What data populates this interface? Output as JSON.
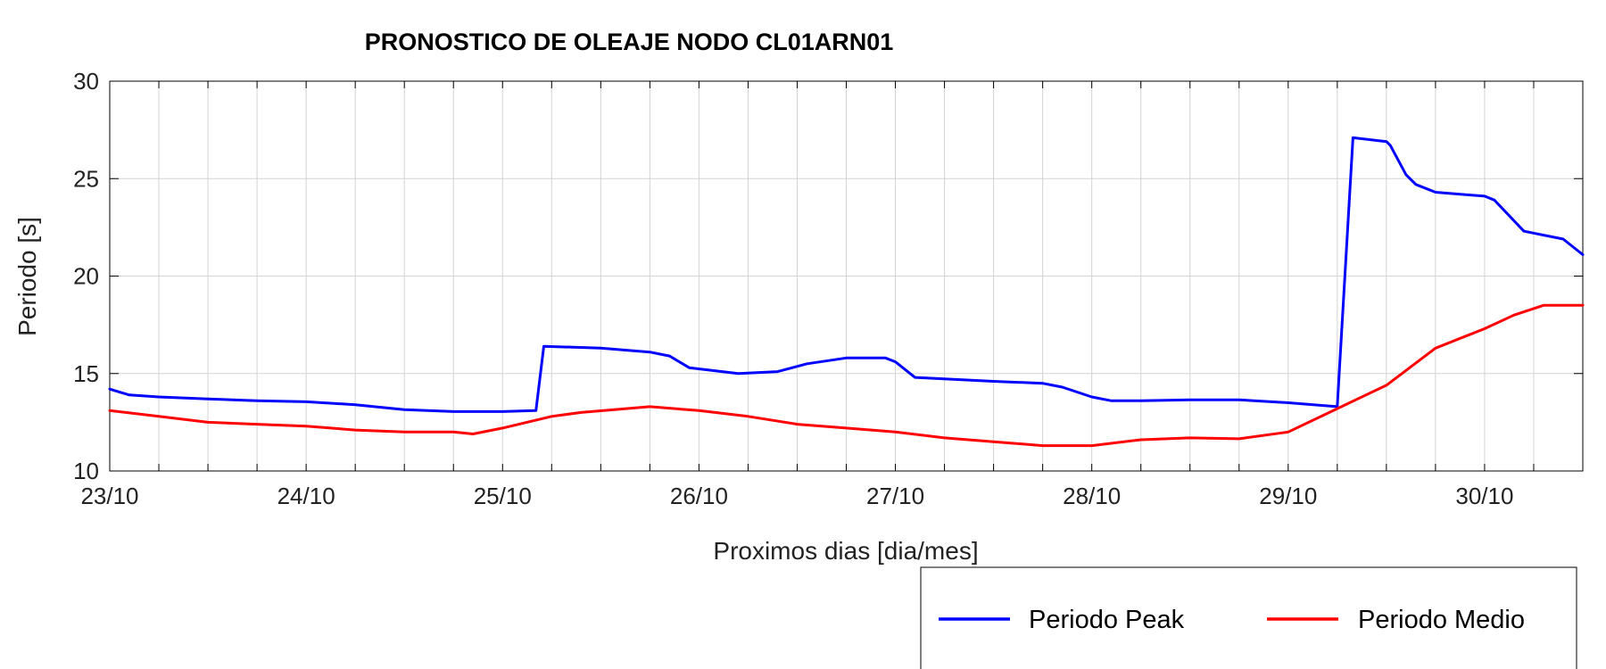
{
  "chart_data": {
    "type": "line",
    "title": "PRONOSTICO DE OLEAJE NODO CL01ARN01",
    "xlabel": "Proximos dias [dia/mes]",
    "ylabel": "Periodo [s]",
    "ylim": [
      10,
      30
    ],
    "yticks": [
      10,
      15,
      20,
      25,
      30
    ],
    "xlim": [
      0,
      7.5
    ],
    "xticks": [
      0,
      1,
      2,
      3,
      4,
      5,
      6,
      7
    ],
    "xtick_labels": [
      "23/10",
      "24/10",
      "25/10",
      "26/10",
      "27/10",
      "28/10",
      "29/10",
      "30/10"
    ],
    "grid": true,
    "legend_position": "bottom-right",
    "series": [
      {
        "name": "Periodo Peak",
        "color": "#0000ff",
        "x": [
          0,
          0.1,
          0.25,
          0.5,
          0.75,
          1.0,
          1.25,
          1.5,
          1.75,
          2.0,
          2.17,
          2.21,
          2.5,
          2.75,
          2.85,
          2.95,
          3.2,
          3.4,
          3.55,
          3.75,
          3.95,
          4.0,
          4.1,
          4.5,
          4.75,
          4.85,
          5.0,
          5.1,
          5.25,
          5.5,
          5.75,
          6.0,
          6.25,
          6.33,
          6.5,
          6.52,
          6.6,
          6.65,
          6.75,
          7.0,
          7.05,
          7.2,
          7.4,
          7.5
        ],
        "y": [
          14.2,
          13.9,
          13.8,
          13.7,
          13.6,
          13.55,
          13.4,
          13.15,
          13.05,
          13.05,
          13.1,
          16.4,
          16.3,
          16.1,
          15.9,
          15.3,
          15.0,
          15.1,
          15.5,
          15.8,
          15.8,
          15.6,
          14.8,
          14.6,
          14.5,
          14.3,
          13.8,
          13.6,
          13.6,
          13.65,
          13.65,
          13.5,
          13.3,
          27.1,
          26.9,
          26.7,
          25.2,
          24.7,
          24.3,
          24.1,
          23.9,
          22.3,
          21.9,
          21.1
        ]
      },
      {
        "name": "Periodo Medio",
        "color": "#ff0000",
        "x": [
          0,
          0.25,
          0.5,
          0.75,
          1.0,
          1.25,
          1.5,
          1.75,
          1.85,
          2.0,
          2.25,
          2.4,
          2.75,
          3.0,
          3.25,
          3.5,
          3.75,
          4.0,
          4.25,
          4.5,
          4.75,
          5.0,
          5.25,
          5.5,
          5.75,
          6.0,
          6.25,
          6.5,
          6.75,
          6.9,
          7.0,
          7.15,
          7.3,
          7.5
        ],
        "y": [
          13.1,
          12.8,
          12.5,
          12.4,
          12.3,
          12.1,
          12.0,
          12.0,
          11.9,
          12.2,
          12.8,
          13.0,
          13.3,
          13.1,
          12.8,
          12.4,
          12.2,
          12.0,
          11.7,
          11.5,
          11.3,
          11.3,
          11.6,
          11.7,
          11.65,
          12.0,
          13.2,
          14.4,
          16.3,
          16.9,
          17.3,
          18.0,
          18.5,
          18.5
        ]
      }
    ]
  }
}
